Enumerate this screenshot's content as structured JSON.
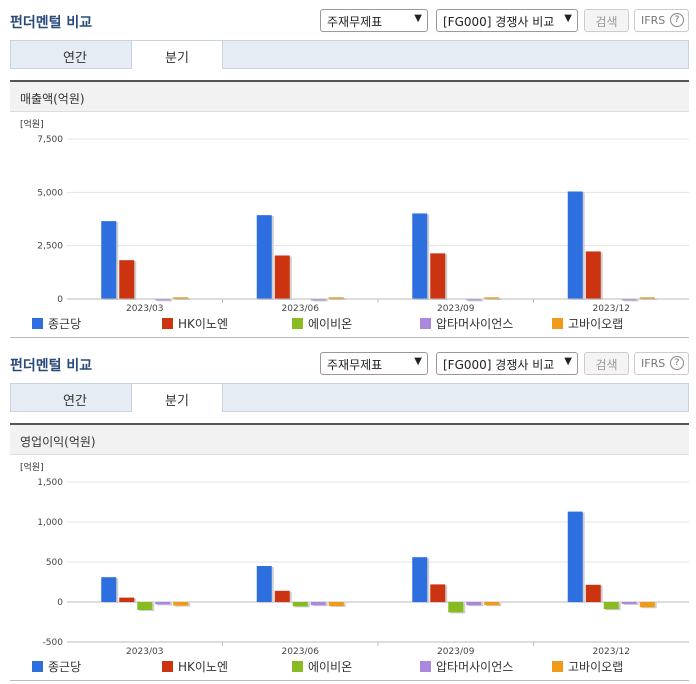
{
  "sections": [
    {
      "title": "펀더멘털 비교",
      "report_select": "주재무제표",
      "peer_select": "[FG000] 경쟁사 비교",
      "search_label": "검색",
      "ifrs_label": "IFRS",
      "tabs": [
        "연간",
        "분기"
      ],
      "active_tab": "분기",
      "panel_title": "매출액(억원)"
    },
    {
      "title": "펀더멘털 비교",
      "report_select": "주재무제표",
      "peer_select": "[FG000] 경쟁사 비교",
      "search_label": "검색",
      "ifrs_label": "IFRS",
      "tabs": [
        "연간",
        "분기"
      ],
      "active_tab": "분기",
      "panel_title": "영업이익(억원)"
    }
  ],
  "colors": {
    "종근당": "#2e6fe0",
    "HK이노엔": "#cc3311",
    "에이비온": "#88bb22",
    "압타머사이언스": "#aa88dd",
    "고바이오랩": "#f09a1a"
  },
  "chart_data": [
    {
      "type": "bar",
      "unit_label": "[억원]",
      "categories": [
        "2023/03",
        "2023/06",
        "2023/09",
        "2023/12"
      ],
      "ylim": [
        0,
        7500
      ],
      "yticks": [
        "7,500",
        "5,000",
        "2,500",
        "0"
      ],
      "ytick_values": [
        7500,
        5000,
        2500,
        0
      ],
      "series": [
        {
          "name": "종근당",
          "values": [
            3650,
            3930,
            4010,
            5040
          ]
        },
        {
          "name": "HK이노엔",
          "values": [
            1820,
            2040,
            2140,
            2230
          ]
        },
        {
          "name": "에이비온",
          "values": [
            0,
            0,
            0,
            0
          ]
        },
        {
          "name": "압타머사이언스",
          "values": [
            5,
            5,
            5,
            5
          ]
        },
        {
          "name": "고바이오랩",
          "values": [
            80,
            80,
            80,
            80
          ]
        }
      ]
    },
    {
      "type": "bar",
      "unit_label": "[억원]",
      "categories": [
        "2023/03",
        "2023/06",
        "2023/09",
        "2023/12"
      ],
      "ylim": [
        -500,
        1500
      ],
      "yticks": [
        "1,500",
        "1,000",
        "500",
        "0",
        "-500"
      ],
      "ytick_values": [
        1500,
        1000,
        500,
        0,
        -500
      ],
      "series": [
        {
          "name": "종근당",
          "values": [
            310,
            450,
            560,
            1130
          ]
        },
        {
          "name": "HK이노엔",
          "values": [
            55,
            140,
            220,
            215
          ]
        },
        {
          "name": "에이비온",
          "values": [
            -100,
            -55,
            -130,
            -90
          ]
        },
        {
          "name": "압타머사이언스",
          "values": [
            -30,
            -40,
            -40,
            -25
          ]
        },
        {
          "name": "고바이오랩",
          "values": [
            -45,
            -50,
            -40,
            -65
          ]
        }
      ]
    }
  ]
}
